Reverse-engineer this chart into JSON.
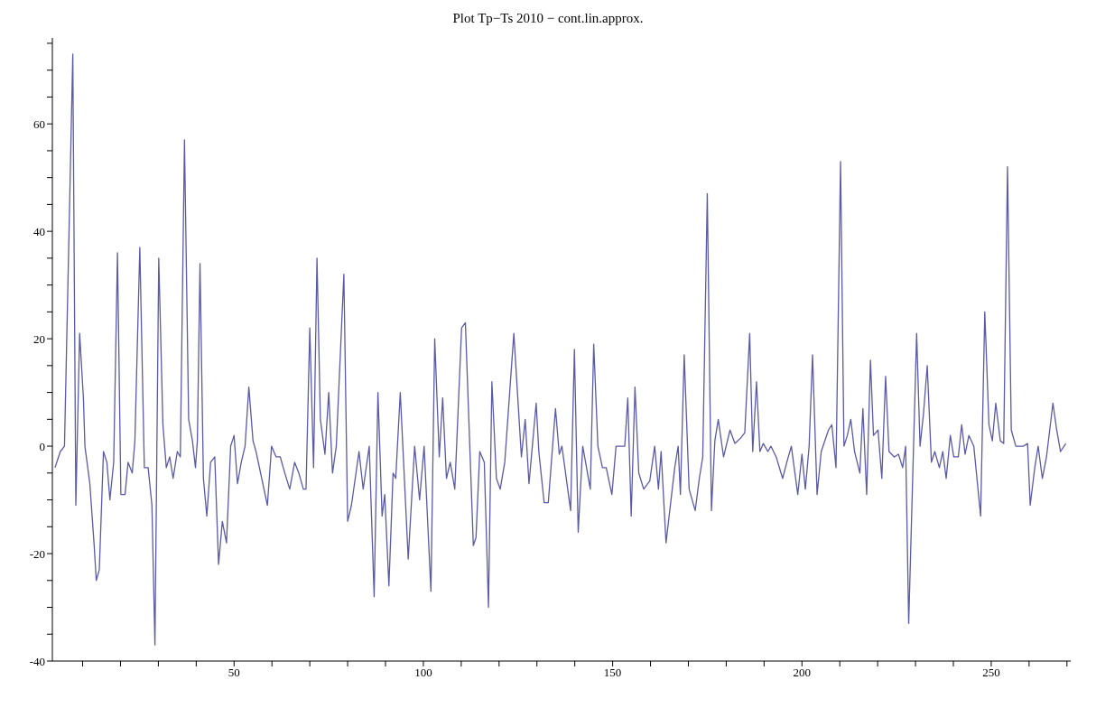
{
  "chart_data": {
    "type": "line",
    "title": "Plot Tp−Ts 2010 − cont.lin.approx.",
    "color": "#5a5aa6",
    "line_style": "solid",
    "x": [
      2.7,
      4.1,
      5.2,
      7.4,
      8.2,
      9.2,
      10.2,
      10.6,
      11.9,
      13,
      13.6,
      14.4,
      15.5,
      16.4,
      17.2,
      18.2,
      19.2,
      20.1,
      21.2,
      22,
      23.1,
      23.8,
      25.1,
      26.3,
      27.3,
      28.3,
      29.1,
      30.1,
      31.2,
      32.1,
      33,
      33.9,
      35,
      35.8,
      36.9,
      38,
      39,
      39.8,
      40.3,
      41,
      41.9,
      42.8,
      43.8,
      44.9,
      45.9,
      46.9,
      48,
      49.1,
      50,
      50.9,
      51.9,
      52.9,
      53.9,
      55,
      55.8,
      58.8,
      59.9,
      61.1,
      62.2,
      63.4,
      64.7,
      66,
      67.1,
      68.3,
      69,
      70,
      71,
      71.9,
      72.8,
      74,
      75,
      76,
      77,
      79,
      80,
      81,
      83,
      84.1,
      85.7,
      87,
      88,
      89.1,
      89.8,
      90.9,
      92,
      92.7,
      93.9,
      96,
      97.7,
      99,
      100.2,
      102,
      103,
      104.2,
      105.1,
      106.1,
      107.1,
      108.3,
      110.1,
      111.1,
      113.2,
      113.9,
      114.9,
      116.1,
      117.2,
      118.1,
      119.3,
      120.3,
      121.5,
      123.9,
      125.9,
      126.9,
      127.9,
      129.8,
      130.5,
      131.9,
      133,
      134.9,
      135.9,
      136.6,
      138.9,
      139.9,
      140.9,
      142.1,
      144.1,
      145,
      146.1,
      147.3,
      148.3,
      149.8,
      150.9,
      153.2,
      154,
      154.9,
      155.9,
      156.9,
      158.2,
      159.8,
      161.1,
      162.1,
      162.8,
      164.1,
      166.4,
      167.3,
      167.9,
      168.9,
      170.2,
      171.8,
      172.9,
      173.8,
      175,
      176.1,
      177,
      177.9,
      179.3,
      181,
      182.3,
      183.8,
      184.9,
      186.2,
      187,
      188,
      188.9,
      189.8,
      191,
      191.8,
      193.2,
      194.9,
      196,
      197.2,
      198.9,
      200,
      200.9,
      201.9,
      202.8,
      204,
      205.1,
      207,
      207.9,
      209,
      210.2,
      211.1,
      212,
      212.9,
      213.9,
      215.3,
      216.1,
      217.1,
      218.1,
      218.9,
      220.1,
      221.1,
      222.1,
      223,
      224.4,
      225.5,
      226.6,
      227.4,
      228.2,
      230.3,
      231.2,
      232.1,
      233.1,
      234.2,
      235.1,
      236.3,
      237.2,
      238.1,
      239.2,
      240.1,
      241.3,
      242.2,
      243.1,
      244.1,
      245.4,
      247.2,
      248.3,
      249.4,
      250.3,
      251.2,
      252.4,
      253.3,
      254.3,
      255.3,
      256.5,
      258.5,
      259.6,
      260.3,
      261.5,
      262.4,
      263.5,
      264.6,
      266.3,
      267.3,
      268.3,
      269.7
    ],
    "values": [
      -4,
      -1,
      0,
      73,
      -11,
      21,
      9,
      0,
      -7,
      -18,
      -25,
      -23,
      -1,
      -3,
      -10,
      -3,
      36,
      -9,
      -9,
      -3,
      -5,
      1,
      37,
      -4,
      -4,
      -11,
      -37,
      35,
      4,
      -4,
      -2,
      -6,
      -1,
      -2,
      57,
      5,
      1,
      -4,
      1,
      34,
      -6,
      -13,
      -3,
      -2,
      -22,
      -14,
      -18,
      0,
      2,
      -7,
      -3,
      0,
      11,
      1,
      -1,
      -11,
      0,
      -2,
      -2,
      -5,
      -8,
      -3,
      -5,
      -8,
      -8,
      22,
      -4,
      35,
      5,
      -1.5,
      10,
      -5,
      0,
      32,
      -14,
      -11,
      -1,
      -8,
      0,
      -28,
      10,
      -13,
      -9,
      -26,
      -5,
      -6,
      10,
      -21,
      0,
      -10,
      0,
      -27,
      20,
      -2,
      9,
      -6,
      -3,
      -8,
      22,
      23,
      -18.5,
      -17,
      -1,
      -3,
      -30,
      12,
      -6,
      -8,
      -3,
      21,
      -2,
      5,
      -7,
      8,
      -1,
      -10.5,
      -10.5,
      7,
      -1.5,
      0,
      -12,
      18,
      -16,
      0,
      -8,
      19,
      0,
      -4,
      -4,
      -9,
      0,
      0,
      9,
      -13,
      11,
      -5,
      -8,
      -6.5,
      0,
      -8,
      -1,
      -18,
      -4,
      0,
      -9,
      17,
      -8,
      -12,
      -6,
      -2,
      47,
      -12,
      1,
      5,
      -2,
      3,
      0.5,
      1.5,
      2.5,
      21,
      -1,
      12,
      -1,
      0.5,
      -1,
      0,
      -2,
      -6,
      -3,
      0,
      -9,
      -1.5,
      -8,
      0,
      17,
      -9,
      -1,
      3,
      4,
      -4,
      53,
      0,
      2,
      5,
      -1,
      -5,
      7,
      -9,
      16,
      2,
      3,
      -6,
      13,
      -1,
      -2,
      -1.5,
      -4,
      0,
      -33,
      21,
      0,
      6,
      15,
      -3,
      -1,
      -4,
      -1,
      -6,
      2,
      -2,
      -2,
      4,
      -1.5,
      2,
      0,
      -13,
      25,
      4,
      1,
      8,
      1,
      0.5,
      52,
      3,
      0,
      0,
      0.5,
      -11,
      -4,
      0,
      -6,
      -2,
      8,
      3,
      -1,
      0.5
    ],
    "xlim": [
      2,
      271
    ],
    "xticks": [
      {
        "value": 10,
        "label": null
      },
      {
        "value": 20,
        "label": null
      },
      {
        "value": 30,
        "label": null
      },
      {
        "value": 40,
        "label": null
      },
      50,
      {
        "value": 60,
        "label": null
      },
      {
        "value": 70,
        "label": null
      },
      {
        "value": 80,
        "label": null
      },
      {
        "value": 90,
        "label": null
      },
      100,
      {
        "value": 110,
        "label": null
      },
      {
        "value": 120,
        "label": null
      },
      {
        "value": 130,
        "label": null
      },
      {
        "value": 140,
        "label": null
      },
      150,
      {
        "value": 160,
        "label": null
      },
      {
        "value": 170,
        "label": null
      },
      {
        "value": 180,
        "label": null
      },
      {
        "value": 190,
        "label": null
      },
      200,
      {
        "value": 210,
        "label": null
      },
      {
        "value": 220,
        "label": null
      },
      {
        "value": 230,
        "label": null
      },
      {
        "value": 240,
        "label": null
      },
      250,
      {
        "value": 260,
        "label": null
      },
      {
        "value": 270,
        "label": null
      }
    ],
    "ylim": [
      -40,
      76
    ],
    "yticks": [
      -40,
      {
        "value": -35,
        "label": null
      },
      {
        "value": -30,
        "label": null
      },
      {
        "value": -25,
        "label": null
      },
      -20,
      {
        "value": -15,
        "label": null
      },
      {
        "value": -10,
        "label": null
      },
      {
        "value": -5,
        "label": null
      },
      0,
      {
        "value": 5,
        "label": null
      },
      {
        "value": 10,
        "label": null
      },
      {
        "value": 15,
        "label": null
      },
      20,
      {
        "value": 25,
        "label": null
      },
      {
        "value": 30,
        "label": null
      },
      {
        "value": 35,
        "label": null
      },
      40,
      {
        "value": 45,
        "label": null
      },
      {
        "value": 50,
        "label": null
      },
      {
        "value": 55,
        "label": null
      },
      60,
      {
        "value": 65,
        "label": null
      },
      {
        "value": 70,
        "label": null
      },
      {
        "value": 75,
        "label": null
      }
    ]
  }
}
